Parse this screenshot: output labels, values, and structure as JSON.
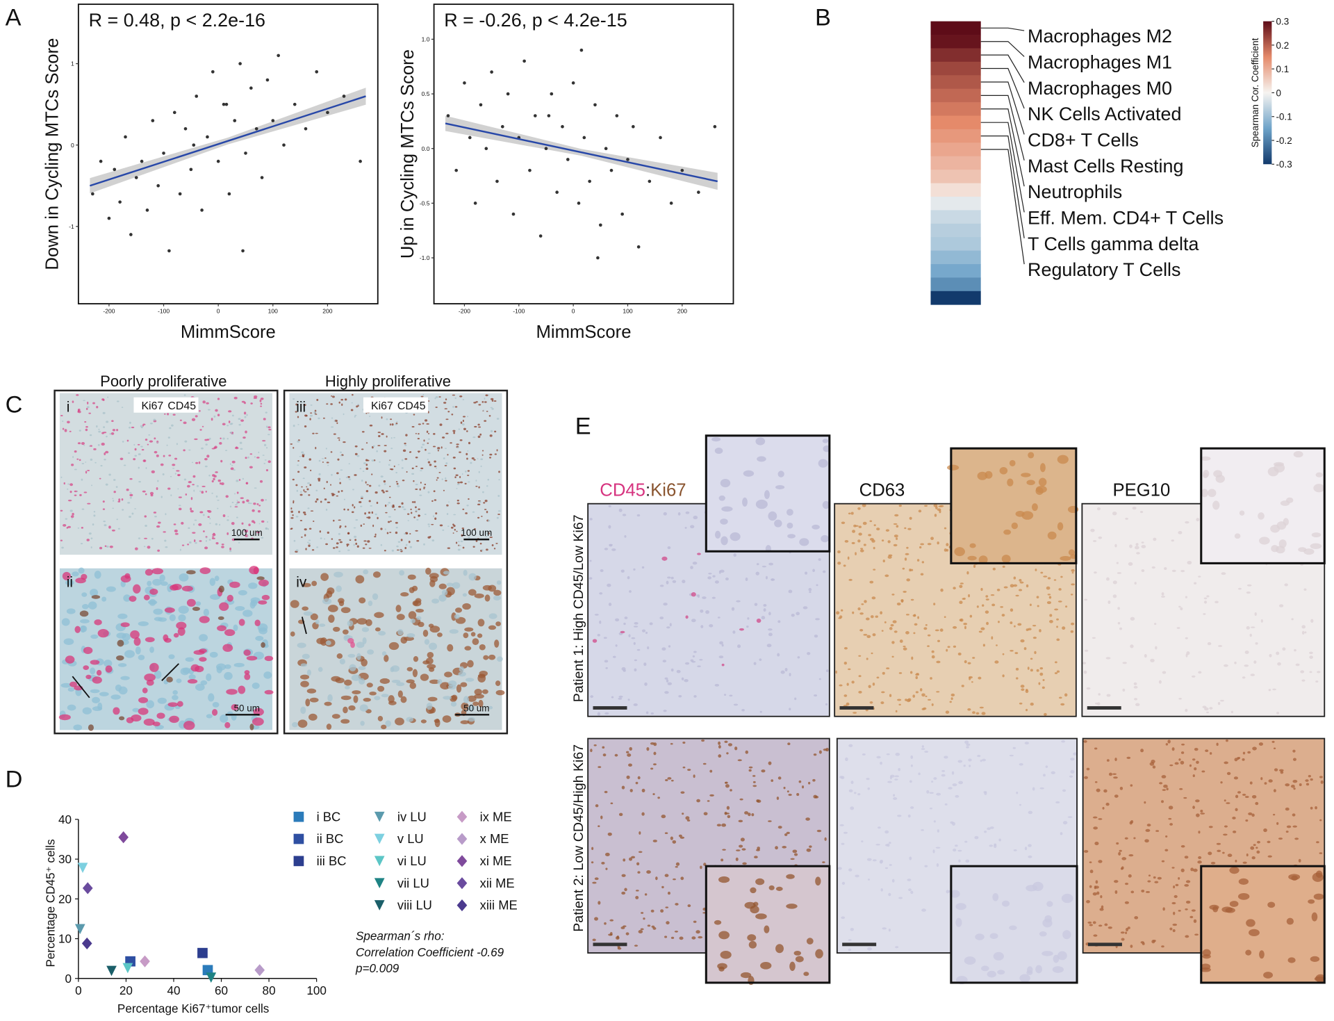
{
  "panel_labels": [
    "A",
    "B",
    "C",
    "D",
    "E"
  ],
  "chart_data": [
    {
      "type": "scatter",
      "annotation": "R = 0.48, p < 2.2e-16",
      "xlabel": "MimmScore",
      "ylabel": "Down in Cycling MTCs Score",
      "x": [
        -230,
        -215,
        -200,
        -190,
        -180,
        -170,
        -160,
        -150,
        -140,
        -130,
        -120,
        -110,
        -100,
        -90,
        -80,
        -70,
        -60,
        -50,
        -40,
        -30,
        -20,
        -10,
        0,
        10,
        20,
        30,
        40,
        50,
        60,
        70,
        80,
        90,
        100,
        110,
        120,
        140,
        160,
        180,
        200,
        230,
        260,
        45,
        -45,
        15
      ],
      "values": [
        -0.6,
        -0.2,
        -0.9,
        -0.3,
        -0.7,
        0.1,
        -1.1,
        -0.4,
        -0.2,
        -0.8,
        0.3,
        -0.5,
        -0.1,
        -1.3,
        0.4,
        -0.6,
        0.2,
        -0.3,
        0.6,
        -0.8,
        0.1,
        0.9,
        -0.2,
        0.5,
        -0.6,
        0.3,
        1.0,
        -0.1,
        0.7,
        0.2,
        -0.4,
        0.8,
        0.3,
        1.1,
        0.0,
        0.5,
        0.2,
        0.9,
        0.4,
        0.6,
        -0.2,
        -1.3,
        0.0,
        0.5
      ],
      "color": "#333333",
      "fit": {
        "x": [
          -235,
          270
        ],
        "values": [
          -0.5,
          0.6
        ],
        "color": "#2747a8"
      },
      "xlim": [
        -256,
        292
      ],
      "ylim": [
        -1.95,
        1.73
      ],
      "xticks": [
        -200,
        -100,
        0,
        100,
        200
      ],
      "yticks": [
        -1,
        0,
        1
      ]
    },
    {
      "type": "scatter",
      "annotation": "R = -0.26, p < 4.2e-15",
      "xlabel": "MimmScore",
      "ylabel": "Up  in Cycling MTCs Score",
      "x": [
        -230,
        -215,
        -200,
        -190,
        -180,
        -170,
        -160,
        -150,
        -140,
        -130,
        -120,
        -110,
        -100,
        -90,
        -80,
        -70,
        -60,
        -50,
        -40,
        -30,
        -20,
        -10,
        0,
        10,
        20,
        30,
        40,
        50,
        60,
        70,
        80,
        90,
        100,
        110,
        120,
        140,
        160,
        180,
        200,
        230,
        260,
        45,
        -45,
        15
      ],
      "values": [
        0.3,
        -0.2,
        0.6,
        0.1,
        -0.5,
        0.4,
        0.0,
        0.7,
        -0.3,
        0.2,
        0.5,
        -0.6,
        0.1,
        0.8,
        -0.2,
        0.3,
        -0.8,
        0.0,
        0.5,
        -0.4,
        0.2,
        -0.1,
        0.6,
        -0.5,
        0.1,
        -0.3,
        0.4,
        -0.7,
        0.0,
        -0.2,
        0.3,
        -0.6,
        -0.1,
        0.2,
        -0.9,
        -0.3,
        0.1,
        -0.5,
        -0.2,
        -0.4,
        0.2,
        -1.0,
        0.3,
        0.9
      ],
      "color": "#333333",
      "fit": {
        "x": [
          -235,
          265
        ],
        "values": [
          0.23,
          -0.3
        ],
        "color": "#2747a8"
      },
      "xlim": [
        -256,
        294
      ],
      "ylim": [
        -1.42,
        1.32
      ],
      "xticks": [
        -200,
        -100,
        0,
        100,
        200
      ],
      "yticks": [
        {
          "value": 1,
          "label": "1.0"
        },
        {
          "value": 0.5,
          "label": "0.5"
        },
        {
          "value": 0,
          "label": "0.0"
        },
        -0.5,
        {
          "value": -1,
          "label": "-1.0"
        }
      ]
    },
    {
      "type": "heatmap",
      "colorbar_label": "Spearman Cor. Coefficient",
      "categories": [
        "Macrophages M2",
        "Macrophages M1",
        "Macrophages M0",
        "NK Cells Activated",
        "CD8+ T Cells",
        "Mast Cells Resting",
        "Neutrophils",
        "Eff. Mem. CD4+ T Cells",
        "T Cells gamma delta",
        "Regulatory T Cells",
        null,
        null,
        null,
        null,
        null,
        null,
        null,
        null,
        null,
        null,
        null
      ],
      "values": [
        0.3,
        0.29,
        0.26,
        0.23,
        0.21,
        0.19,
        0.17,
        0.15,
        0.13,
        0.11,
        0.09,
        0.07,
        0.03,
        -0.02,
        -0.05,
        -0.07,
        -0.08,
        -0.11,
        -0.14,
        -0.18,
        -0.3
      ],
      "clim": [
        -0.3,
        0.3
      ],
      "cticks": [
        0.3,
        0.2,
        0.1,
        0,
        -0.1,
        -0.2,
        -0.3
      ],
      "colorscale": [
        [
          -0.3,
          "#123a6c"
        ],
        [
          -0.15,
          "#6ea3c9"
        ],
        [
          0,
          "#f6f4f1"
        ],
        [
          0.15,
          "#e58a6a"
        ],
        [
          0.3,
          "#5e0c18"
        ]
      ]
    },
    {
      "type": "scatter",
      "xlabel": "Percentage Ki67⁺tumor cells",
      "ylabel": "Percentage CD45⁺ cells",
      "annotation": [
        "Spearman´s rho:",
        "Correlation Coefficient -0.69",
        "p=0.009"
      ],
      "series": [
        {
          "name": "i BC",
          "color": "#2b7bba",
          "marker": "square",
          "x": [
            54.3
          ],
          "values": [
            2.1
          ]
        },
        {
          "name": "ii BC",
          "color": "#2e4fa2",
          "marker": "square",
          "x": [
            21.8
          ],
          "values": [
            4.3
          ]
        },
        {
          "name": "iii BC",
          "color": "#2c3e8f",
          "marker": "square",
          "x": [
            52.1
          ],
          "values": [
            6.4
          ]
        },
        {
          "name": "iv LU",
          "color": "#5b9aad",
          "marker": "triangle-down",
          "x": [
            0.7
          ],
          "values": [
            12.4
          ]
        },
        {
          "name": "v LU",
          "color": "#7dd0e0",
          "marker": "triangle-down",
          "x": [
            1.8
          ],
          "values": [
            27.8
          ]
        },
        {
          "name": "vi LU",
          "color": "#5cc6c6",
          "marker": "triangle-down",
          "x": [
            20.7
          ],
          "values": [
            2.6
          ]
        },
        {
          "name": "vii LU",
          "color": "#1e8384",
          "marker": "triangle-down",
          "x": [
            55.7
          ],
          "values": [
            0.2
          ]
        },
        {
          "name": "viii LU",
          "color": "#1b5f69",
          "marker": "triangle-down",
          "x": [
            13.9
          ],
          "values": [
            1.9
          ]
        },
        {
          "name": "ix ME",
          "color": "#c79bc6",
          "marker": "diamond",
          "x": [
            27.9
          ],
          "values": [
            4.3
          ]
        },
        {
          "name": "x ME",
          "color": "#b89bc9",
          "marker": "diamond",
          "x": [
            76.1
          ],
          "values": [
            2.1
          ]
        },
        {
          "name": "xi ME",
          "color": "#7f4a9c",
          "marker": "diamond",
          "x": [
            18.9
          ],
          "values": [
            35.5
          ]
        },
        {
          "name": "xii ME",
          "color": "#6a4b9e",
          "marker": "diamond",
          "x": [
            3.9
          ],
          "values": [
            22.7
          ]
        },
        {
          "name": "xiii ME",
          "color": "#4b3a8e",
          "marker": "diamond",
          "x": [
            3.6
          ],
          "values": [
            8.8
          ]
        }
      ],
      "xlim": [
        0,
        100
      ],
      "ylim": [
        0,
        40
      ],
      "xticks": [
        0,
        20,
        40,
        60,
        80,
        100
      ],
      "yticks": [
        0,
        10,
        20,
        30,
        40
      ]
    }
  ],
  "panel_c": {
    "titles": [
      "Poorly proliferative",
      "Highly proliferative"
    ],
    "stain_labels": [
      [
        "Ki67",
        "CD45"
      ],
      [
        "Ki67",
        "CD45"
      ]
    ],
    "images": [
      "i",
      "ii",
      "iii",
      "iv"
    ],
    "scale_bars": [
      "100 um",
      "50 um",
      "100 um",
      "50 um"
    ]
  },
  "panel_e": {
    "columns": [
      [
        "CD45",
        ":",
        "Ki67"
      ],
      [
        "CD63"
      ],
      [
        "PEG10"
      ]
    ],
    "rows": [
      "Patient 1: High CD45/Low Ki67",
      "Patient 2: Low CD45/High Ki67"
    ]
  }
}
